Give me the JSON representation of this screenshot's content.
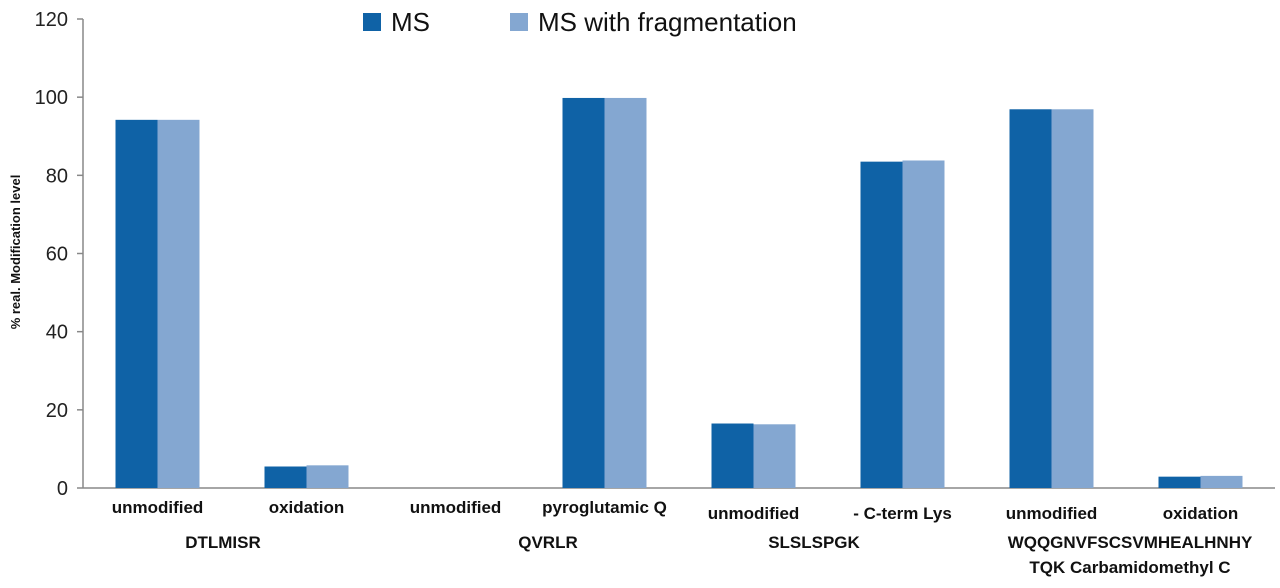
{
  "chart_data": {
    "type": "bar",
    "ylabel": "% real. Modification level",
    "xlabel": "",
    "ylim": [
      0,
      120
    ],
    "yticks": [
      0,
      20,
      40,
      60,
      80,
      100,
      120
    ],
    "grid": false,
    "legend_position": "top-center",
    "categories": [
      "unmodified",
      "oxidation",
      "unmodified",
      "pyroglutamic Q",
      "unmodified",
      "- C-term Lys",
      "unmodified",
      "oxidation"
    ],
    "groups": [
      {
        "label_lines": [
          "DTLMISR"
        ],
        "categories": [
          0,
          1
        ]
      },
      {
        "label_lines": [
          "QVRLR"
        ],
        "categories": [
          2,
          3
        ]
      },
      {
        "label_lines": [
          "SLSLSPGK"
        ],
        "categories": [
          4,
          5
        ]
      },
      {
        "label_lines": [
          "WQQGNVFSCSVMHEALHNHY",
          "TQK Carbamidomethyl C"
        ],
        "categories": [
          6,
          7
        ]
      }
    ],
    "series": [
      {
        "name": "MS",
        "color": "#0F62A6",
        "values": [
          94.2,
          5.5,
          0,
          99.8,
          16.5,
          83.5,
          96.9,
          2.9
        ]
      },
      {
        "name": "MS with fragmentation",
        "color": "#84A7D1",
        "values": [
          94.2,
          5.8,
          0,
          99.8,
          16.3,
          83.8,
          96.9,
          3.1
        ]
      }
    ]
  }
}
